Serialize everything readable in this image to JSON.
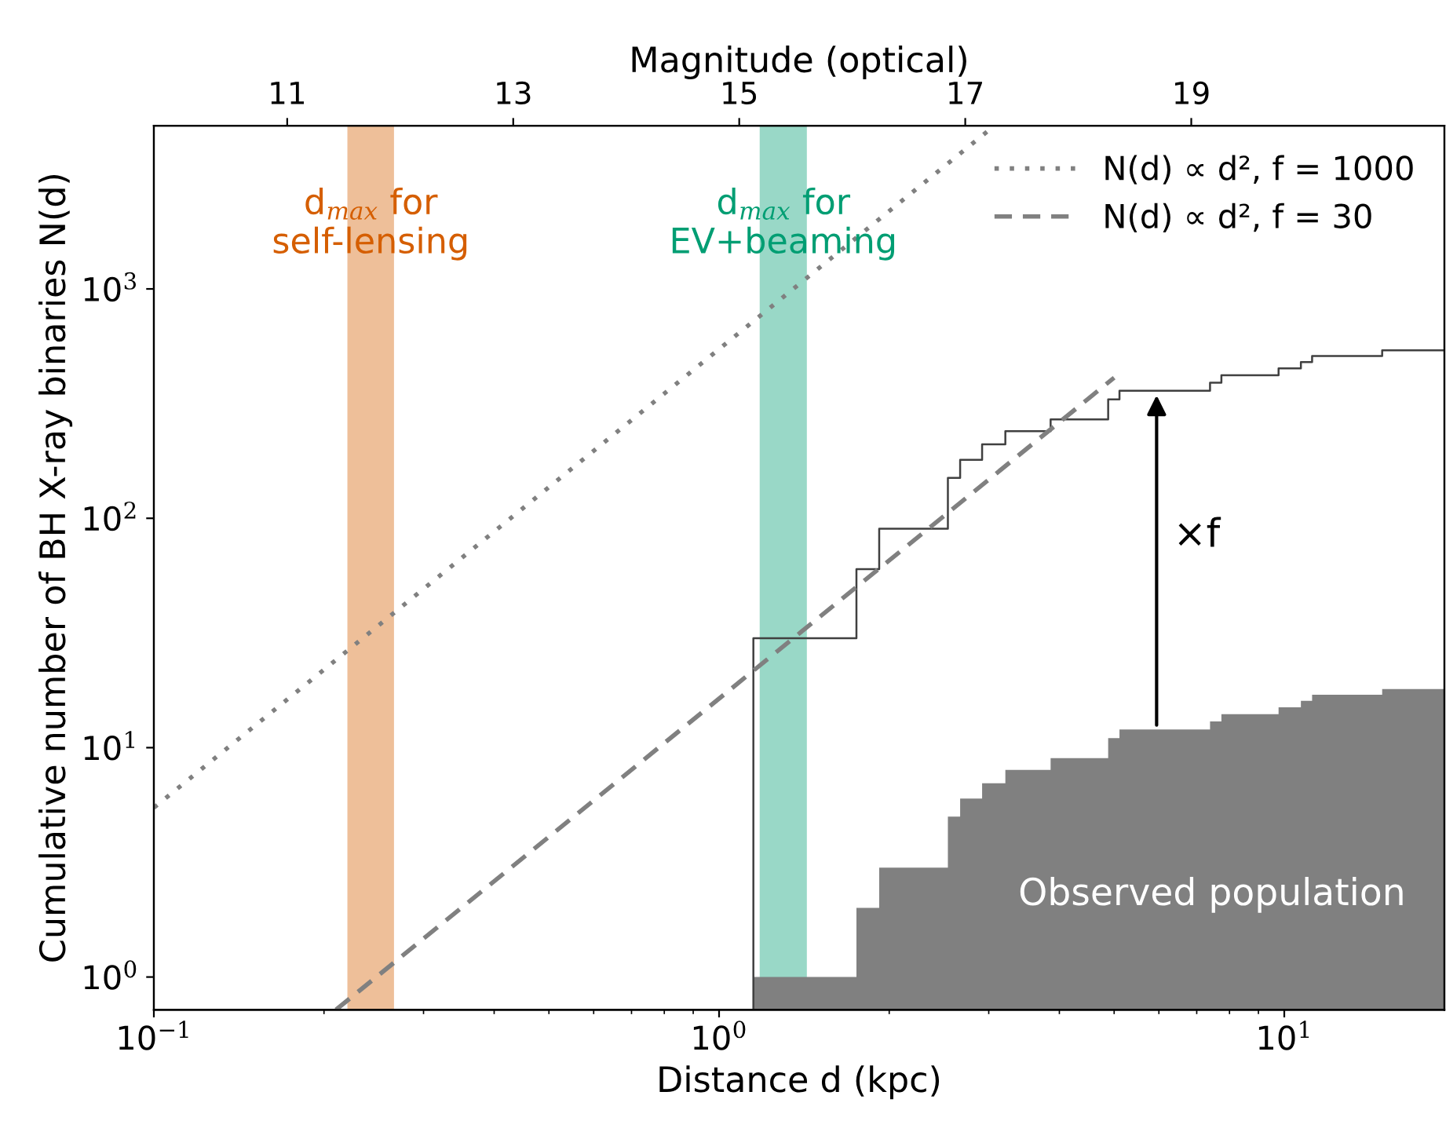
{
  "chart_data": {
    "type": "line",
    "xlabel": "Distance d (kpc)",
    "ylabel": "Cumulative number of BH X-ray binaries N(d)",
    "x2label": "Magnitude (optical)",
    "log": "xy",
    "xlim": [
      0.1,
      19.2
    ],
    "ylim": [
      0.72,
      5150
    ],
    "xticks": [
      {
        "value": 0.1,
        "label": "10$^{−1}$"
      },
      {
        "value": 1,
        "label": "10$^{0}$"
      },
      {
        "value": 10,
        "label": "10$^{1}$"
      }
    ],
    "yticks": [
      {
        "value": 1,
        "label": "10$^{0}$"
      },
      {
        "value": 10,
        "label": "10$^{1}$"
      },
      {
        "value": 100,
        "label": "10$^{2}$"
      },
      {
        "value": 1000,
        "label": "10$^{3}$"
      }
    ],
    "x2lim": [
      9.82,
      21.24
    ],
    "x2ticks": [
      11,
      13,
      15,
      17,
      19
    ],
    "grid": false,
    "legend": "top right",
    "marker": "none",
    "series": [
      {
        "name": "N(d) ∝ d², f = 1000",
        "color": "#808080",
        "line_style": "dotted",
        "x": [
          0.1,
          3.07
        ],
        "values": [
          5.47,
          5150
        ]
      },
      {
        "name": "N(d) ∝ d², f = 30",
        "color": "#808080",
        "line_style": "dashed",
        "x": [
          0.21,
          5.0
        ],
        "values": [
          0.72,
          410
        ]
      },
      {
        "type": "area",
        "color": "#808080",
        "x": [
          1.15,
          1.75,
          1.92,
          2.54,
          2.67,
          2.92,
          3.21,
          3.86,
          4.88,
          5.11,
          7.39,
          7.74,
          9.77,
          10.7,
          11.2,
          14.9,
          19.2
        ],
        "values": [
          1,
          2,
          3,
          5,
          6,
          7,
          8,
          9,
          11,
          12,
          13,
          14,
          15,
          16,
          17,
          18,
          18
        ]
      },
      {
        "type": "step",
        "color": "#404040",
        "x": [
          1.15,
          1.15,
          1.75,
          1.92,
          2.54,
          2.67,
          2.92,
          3.21,
          3.86,
          4.88,
          5.11,
          7.39,
          7.74,
          9.77,
          10.7,
          11.2,
          14.9,
          19.2
        ],
        "values": [
          0.72,
          30,
          60,
          90,
          150,
          180,
          210,
          240,
          270,
          330,
          360,
          390,
          420,
          450,
          480,
          510,
          540,
          540
        ]
      }
    ],
    "bands": [
      {
        "axis": "x",
        "from": 0.22,
        "to": 0.266,
        "label": "d$_{max}$ for\nself-lensing",
        "color": "#d55e00"
      },
      {
        "axis": "x",
        "from": 1.18,
        "to": 1.43,
        "label": "d$_{max}$ for\nEV+beaming",
        "color": "#009e73"
      }
    ],
    "annotations": [
      "×f",
      "Observed population"
    ]
  }
}
